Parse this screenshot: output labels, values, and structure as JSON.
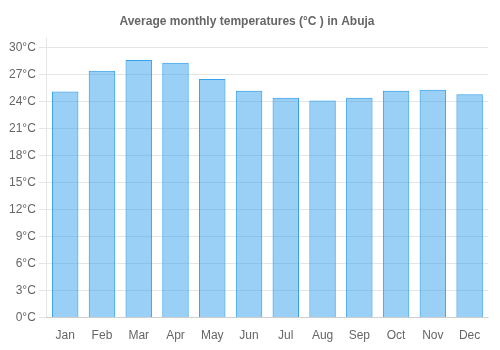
{
  "chart_data": {
    "type": "bar",
    "title": "Average monthly temperatures (°C ) in Abuja",
    "categories": [
      "Jan",
      "Feb",
      "Mar",
      "Apr",
      "May",
      "Jun",
      "Jul",
      "Aug",
      "Sep",
      "Oct",
      "Nov",
      "Dec"
    ],
    "values": [
      25.1,
      27.4,
      28.6,
      28.3,
      26.5,
      25.2,
      24.4,
      24.1,
      24.4,
      25.2,
      25.3,
      24.8
    ],
    "ylim": [
      0,
      31
    ],
    "yticks": [
      {
        "value": 0,
        "label": "0°C"
      },
      {
        "value": 3,
        "label": "3°C"
      },
      {
        "value": 6,
        "label": "6°C"
      },
      {
        "value": 9,
        "label": "9°C"
      },
      {
        "value": 12,
        "label": "12°C"
      },
      {
        "value": 15,
        "label": "15°C"
      },
      {
        "value": 18,
        "label": "18°C"
      },
      {
        "value": 21,
        "label": "21°C"
      },
      {
        "value": 24,
        "label": "24°C"
      },
      {
        "value": 27,
        "label": "27°C"
      },
      {
        "value": 30,
        "label": "30°C"
      }
    ],
    "grid": true
  }
}
